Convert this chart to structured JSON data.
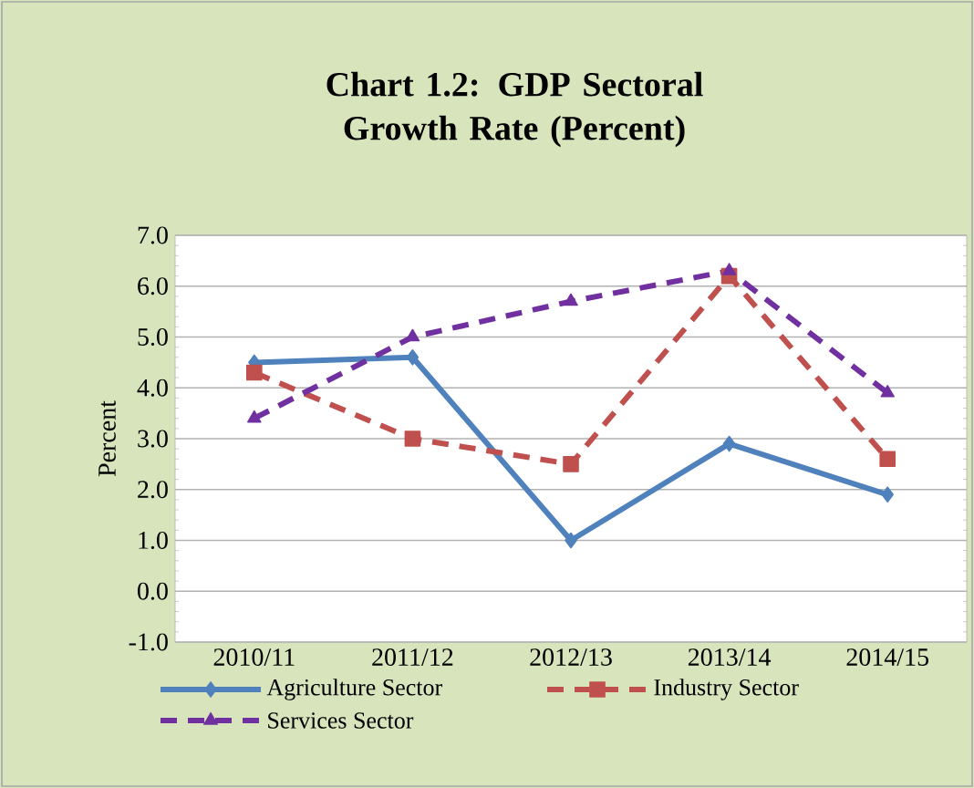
{
  "chart_data": {
    "type": "line",
    "title": "Chart 1.2: GDP Sectoral Growth Rate (Percent)",
    "ylabel": "Percent",
    "categories": [
      "2010/11",
      "2011/12",
      "2012/13",
      "2013/14",
      "2014/15"
    ],
    "series": [
      {
        "name": "Agriculture Sector",
        "color": "#4f81bd",
        "values": [
          4.5,
          4.6,
          1.0,
          2.9,
          1.9
        ],
        "marker": "diamond",
        "line_style": "solid"
      },
      {
        "name": "Industry Sector",
        "color": "#c0504d",
        "values": [
          4.3,
          3.0,
          2.5,
          6.2,
          2.6
        ],
        "marker": "square",
        "line_style": "dashed"
      },
      {
        "name": "Services Sector",
        "color": "#7030a0",
        "values": [
          3.4,
          5.0,
          5.7,
          6.3,
          3.9
        ],
        "marker": "triangle",
        "line_style": "dashed"
      }
    ],
    "ylim": [
      -1,
      7
    ],
    "yticks": [
      {
        "value": -1,
        "label": "-1.0"
      },
      {
        "value": 0,
        "label": "0.0"
      },
      {
        "value": 1,
        "label": "1.0"
      },
      {
        "value": 2,
        "label": "2.0"
      },
      {
        "value": 3,
        "label": "3.0"
      },
      {
        "value": 4,
        "label": "4.0"
      },
      {
        "value": 5,
        "label": "5.0"
      },
      {
        "value": 6,
        "label": "6.0"
      },
      {
        "value": 7,
        "label": "7.0"
      }
    ],
    "grid": "y",
    "legend": "bottom"
  }
}
